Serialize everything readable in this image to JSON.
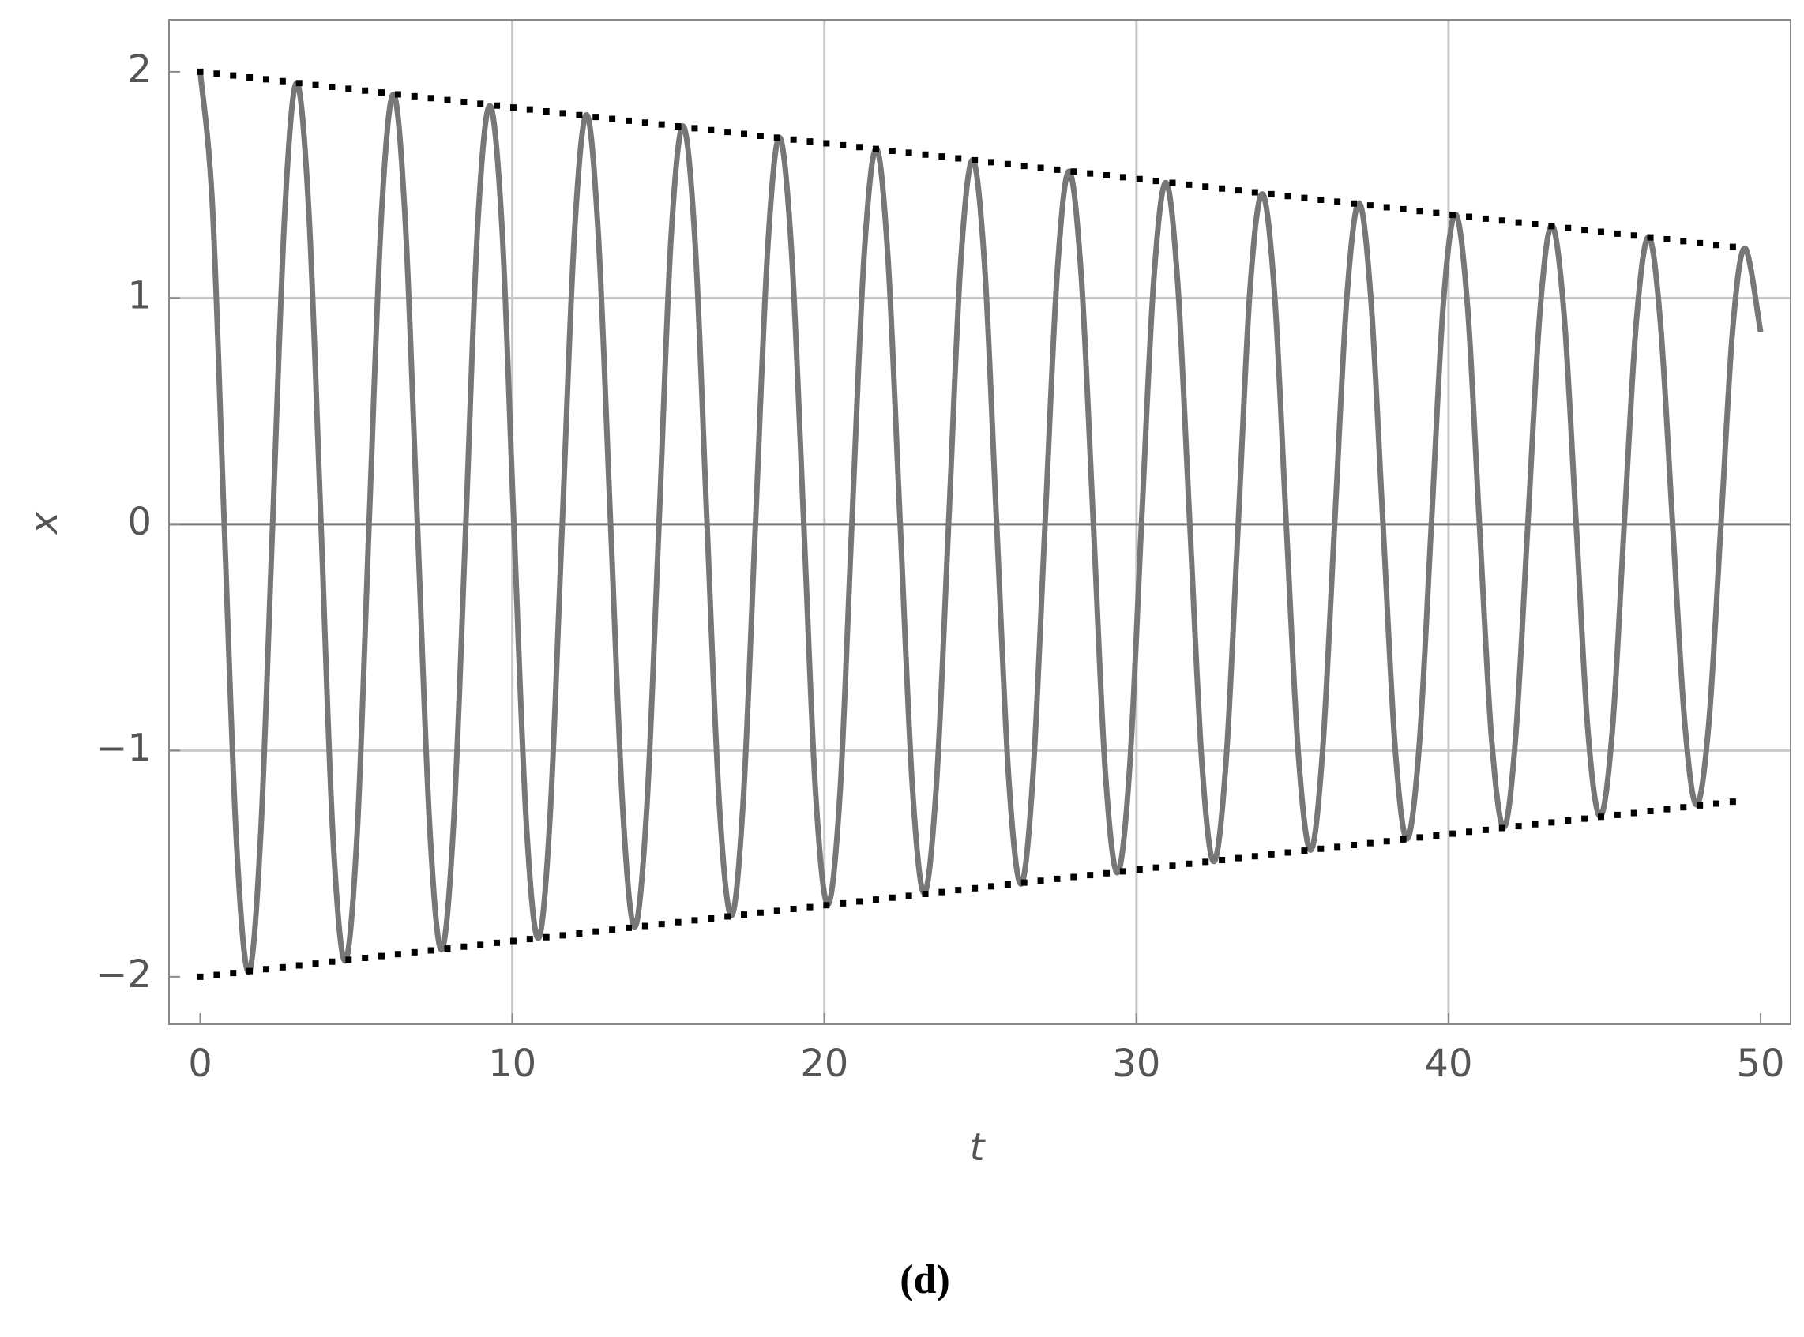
{
  "chart_data": {
    "type": "line",
    "caption": "(d)",
    "xlabel": "t",
    "ylabel": "x",
    "xlim": [
      -1,
      50.96
    ],
    "ylim": [
      -2.21,
      2.23
    ],
    "xticks": [
      0,
      10,
      20,
      30,
      40,
      50
    ],
    "yticks": [
      {
        "value": -2,
        "label": "−2"
      },
      {
        "value": -1,
        "label": "−1"
      },
      0,
      1,
      2
    ],
    "grid": true,
    "series": [
      {
        "color": "#777777",
        "style": "solid",
        "x": [
          0,
          0.39,
          0.77,
          1.16,
          1.55,
          1.93,
          2.32,
          2.71,
          3.09,
          3.48,
          3.87,
          4.25,
          4.64,
          5.03,
          5.41,
          5.8,
          6.19,
          6.57,
          6.96,
          7.35,
          7.73,
          8.12,
          8.51,
          8.89,
          9.28,
          9.67,
          10.05,
          10.44,
          10.83,
          11.21,
          11.6,
          11.99,
          12.38,
          12.76,
          13.15,
          13.54,
          13.92,
          14.31,
          14.7,
          15.08,
          15.47,
          15.86,
          16.24,
          16.63,
          17.02,
          17.4,
          17.79,
          18.18,
          18.56,
          18.95,
          19.34,
          19.72,
          20.11,
          20.5,
          20.88,
          21.27,
          21.66,
          22.04,
          22.43,
          22.82,
          23.2,
          23.59,
          23.98,
          24.36,
          24.75,
          25.14,
          25.52,
          25.91,
          26.3,
          26.68,
          27.07,
          27.46,
          27.84,
          28.23,
          28.62,
          29.0,
          29.39,
          29.78,
          30.16,
          30.55,
          30.94,
          31.32,
          31.71,
          32.1,
          32.48,
          32.87,
          33.26,
          33.64,
          34.03,
          34.42,
          34.8,
          35.19,
          35.58,
          35.96,
          36.35,
          36.74,
          37.13,
          37.51,
          37.9,
          38.29,
          38.67,
          39.06,
          39.45,
          39.83,
          40.22,
          40.61,
          40.99,
          41.38,
          41.77,
          42.15,
          42.54,
          42.93,
          43.31,
          43.7,
          44.09,
          44.47,
          44.86,
          45.25,
          45.63,
          46.02,
          46.41,
          46.79,
          47.18,
          47.57,
          47.95,
          48.34,
          48.73,
          49.11,
          49.5,
          50.0
        ],
        "values": [
          2,
          1.41,
          0,
          -1.4,
          -1.98,
          -1.39,
          0,
          1.38,
          1.95,
          1.38,
          0,
          -1.37,
          -1.93,
          -1.36,
          0,
          1.35,
          1.9,
          1.34,
          0,
          -1.33,
          -1.88,
          -1.32,
          0,
          1.32,
          1.85,
          1.31,
          0,
          -1.3,
          -1.83,
          -1.29,
          0,
          1.28,
          1.81,
          1.27,
          0,
          -1.26,
          -1.78,
          -1.25,
          0,
          1.25,
          1.76,
          1.24,
          0,
          -1.23,
          -1.73,
          -1.22,
          0,
          1.21,
          1.71,
          1.2,
          0,
          -1.19,
          -1.68,
          -1.19,
          0,
          1.18,
          1.66,
          1.17,
          0,
          -1.16,
          -1.63,
          -1.15,
          0,
          1.14,
          1.61,
          1.13,
          0,
          -1.13,
          -1.59,
          -1.12,
          0,
          1.11,
          1.56,
          1.1,
          0,
          -1.09,
          -1.54,
          -1.08,
          0,
          1.07,
          1.51,
          1.07,
          0,
          -1.06,
          -1.49,
          -1.05,
          0,
          1.04,
          1.46,
          1.03,
          0,
          -1.02,
          -1.44,
          -1.01,
          0,
          1.0,
          1.42,
          1.0,
          0,
          -0.99,
          -1.39,
          -0.98,
          0,
          0.97,
          1.37,
          0.96,
          0,
          -0.95,
          -1.34,
          -0.94,
          0,
          0.94,
          1.32,
          0.93,
          0,
          -0.92,
          -1.29,
          -0.91,
          0,
          0.9,
          1.27,
          0.89,
          0,
          -0.88,
          -1.24,
          -0.88,
          0,
          0.87,
          1.22,
          0.85
        ]
      },
      {
        "color": "#000000",
        "style": "dotted",
        "x": [
          0,
          49.5
        ],
        "values": [
          2,
          1.22
        ]
      },
      {
        "color": "#000000",
        "style": "dotted",
        "x": [
          0,
          49.5
        ],
        "values": [
          -2,
          -1.22
        ]
      }
    ]
  }
}
